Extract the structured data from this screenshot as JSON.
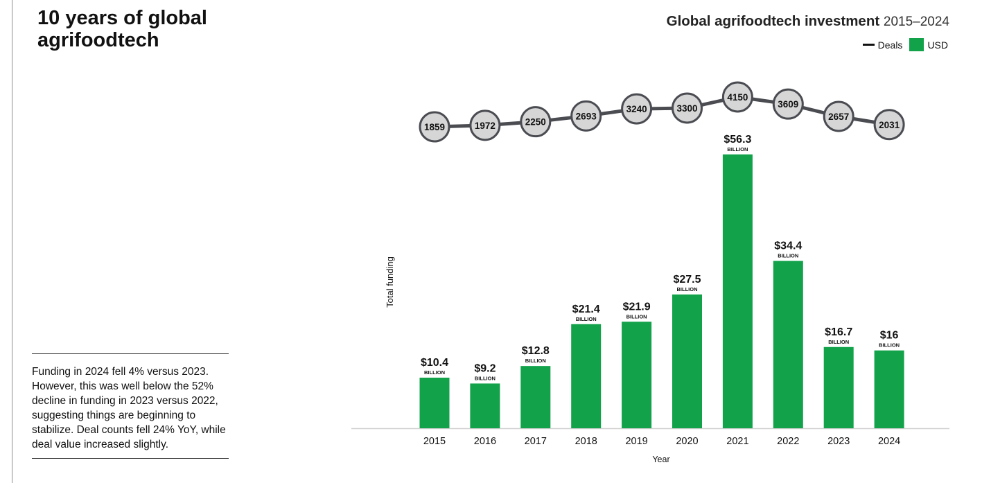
{
  "header": {
    "title_line1": "10 years of global",
    "title_line2": "agrifoodtech"
  },
  "summary": {
    "text": "Funding in 2024 fell 4% versus 2023. However, this was well below the 52% decline in funding in 2023 versus 2022, suggesting things are beginning to stabilize. Deal counts fell 24% YoY, while deal value increased slightly."
  },
  "chart": {
    "title_main": "Global agrifoodtech investment",
    "title_range": "2015–2024",
    "legend_deals": "Deals",
    "legend_usd": "USD"
  },
  "colors": {
    "bar": "#12a24a",
    "line": "#4a4c52",
    "marker_fill": "#d6d6d6",
    "marker_stroke": "#4a4c52"
  },
  "chart_data": {
    "type": "bar",
    "title": "Global agrifoodtech investment 2015–2024",
    "xlabel": "Year",
    "ylabel": "Total funding",
    "categories": [
      "2015",
      "2016",
      "2017",
      "2018",
      "2019",
      "2020",
      "2021",
      "2022",
      "2023",
      "2024"
    ],
    "ylim": [
      0,
      60
    ],
    "series": [
      {
        "name": "USD",
        "unit": "BILLION",
        "values": [
          10.4,
          9.2,
          12.8,
          21.4,
          21.9,
          27.5,
          56.3,
          34.4,
          16.7,
          16
        ],
        "labels": [
          "$10.4",
          "$9.2",
          "$12.8",
          "$21.4",
          "$21.9",
          "$27.5",
          "$56.3",
          "$34.4",
          "$16.7",
          "$16"
        ]
      },
      {
        "name": "Deals",
        "type": "line",
        "values": [
          1859,
          1972,
          2250,
          2693,
          3240,
          3300,
          4150,
          3609,
          2657,
          2031
        ],
        "labels": [
          "1859",
          "1972",
          "2250",
          "2693",
          "3240",
          "3300",
          "4150",
          "3609",
          "2657",
          "2031"
        ],
        "ylim": [
          1700,
          4300
        ]
      }
    ],
    "legend": "top-right",
    "grid": false
  }
}
